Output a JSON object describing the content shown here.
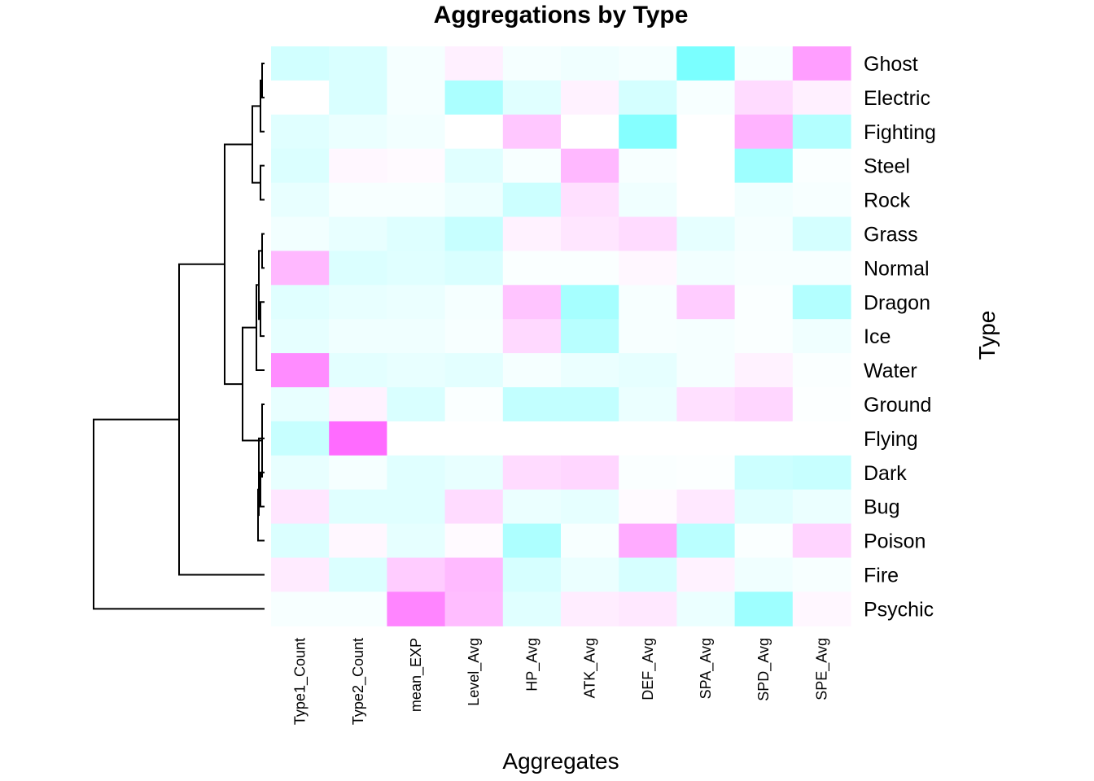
{
  "chart_data": {
    "type": "heatmap",
    "title": "Aggregations by Type",
    "xlabel": "Aggregates",
    "ylabel": "Type",
    "columns": [
      "Type1_Count",
      "Type2_Count",
      "mean_EXP",
      "Level_Avg",
      "HP_Avg",
      "ATK_Avg",
      "DEF_Avg",
      "SPA_Avg",
      "SPD_Avg",
      "SPE_Avg"
    ],
    "rows": [
      "Ghost",
      "Electric",
      "Fighting",
      "Steel",
      "Rock",
      "Grass",
      "Normal",
      "Dragon",
      "Ice",
      "Water",
      "Ground",
      "Flying",
      "Dark",
      "Bug",
      "Poison",
      "Fire",
      "Psychic"
    ],
    "color_scale": {
      "low": "#00FFFF",
      "mid": "#FFFFFF",
      "high": "#FF00FF",
      "range": [
        -1,
        1
      ]
    },
    "values": [
      [
        -0.18,
        -0.15,
        -0.04,
        0.06,
        -0.04,
        -0.06,
        -0.04,
        -0.52,
        -0.03,
        0.38
      ],
      [
        0.0,
        -0.15,
        -0.04,
        -0.33,
        -0.12,
        0.05,
        -0.17,
        -0.03,
        0.14,
        0.06
      ],
      [
        -0.12,
        -0.08,
        -0.05,
        0.0,
        0.22,
        0.0,
        -0.48,
        0.0,
        0.3,
        -0.3
      ],
      [
        -0.14,
        0.03,
        0.02,
        -0.12,
        -0.03,
        0.28,
        -0.03,
        0.0,
        -0.38,
        -0.02
      ],
      [
        -0.09,
        -0.03,
        -0.03,
        -0.07,
        -0.2,
        0.12,
        -0.06,
        0.0,
        -0.05,
        -0.03
      ],
      [
        -0.05,
        -0.09,
        -0.13,
        -0.22,
        0.05,
        0.1,
        0.14,
        -0.1,
        -0.04,
        -0.17
      ],
      [
        0.28,
        -0.14,
        -0.12,
        -0.15,
        -0.02,
        -0.02,
        0.03,
        -0.05,
        -0.03,
        -0.03
      ],
      [
        -0.12,
        -0.09,
        -0.08,
        -0.04,
        0.23,
        -0.35,
        -0.03,
        0.2,
        -0.02,
        -0.3
      ],
      [
        -0.1,
        -0.06,
        -0.06,
        -0.03,
        0.15,
        -0.28,
        -0.03,
        -0.04,
        -0.02,
        -0.06
      ],
      [
        0.45,
        -0.11,
        -0.09,
        -0.11,
        -0.04,
        -0.08,
        -0.1,
        -0.04,
        0.05,
        -0.02
      ],
      [
        -0.09,
        0.05,
        -0.15,
        -0.02,
        -0.24,
        -0.24,
        -0.08,
        0.12,
        0.16,
        -0.01
      ],
      [
        -0.22,
        0.58,
        0.0,
        0.0,
        0.0,
        0.0,
        0.0,
        0.0,
        0.0,
        0.0
      ],
      [
        -0.09,
        -0.04,
        -0.12,
        -0.09,
        0.14,
        0.16,
        -0.02,
        -0.01,
        -0.2,
        -0.22
      ],
      [
        0.1,
        -0.12,
        -0.12,
        0.14,
        -0.08,
        -0.1,
        0.02,
        0.09,
        -0.12,
        -0.08
      ],
      [
        -0.14,
        0.03,
        -0.1,
        0.02,
        -0.32,
        -0.03,
        0.33,
        -0.27,
        -0.02,
        0.17
      ],
      [
        0.08,
        -0.14,
        0.2,
        0.27,
        -0.16,
        -0.08,
        -0.16,
        0.05,
        -0.06,
        -0.03
      ],
      [
        -0.03,
        -0.03,
        0.48,
        0.26,
        -0.12,
        0.07,
        0.09,
        -0.08,
        -0.38,
        0.03
      ]
    ]
  }
}
